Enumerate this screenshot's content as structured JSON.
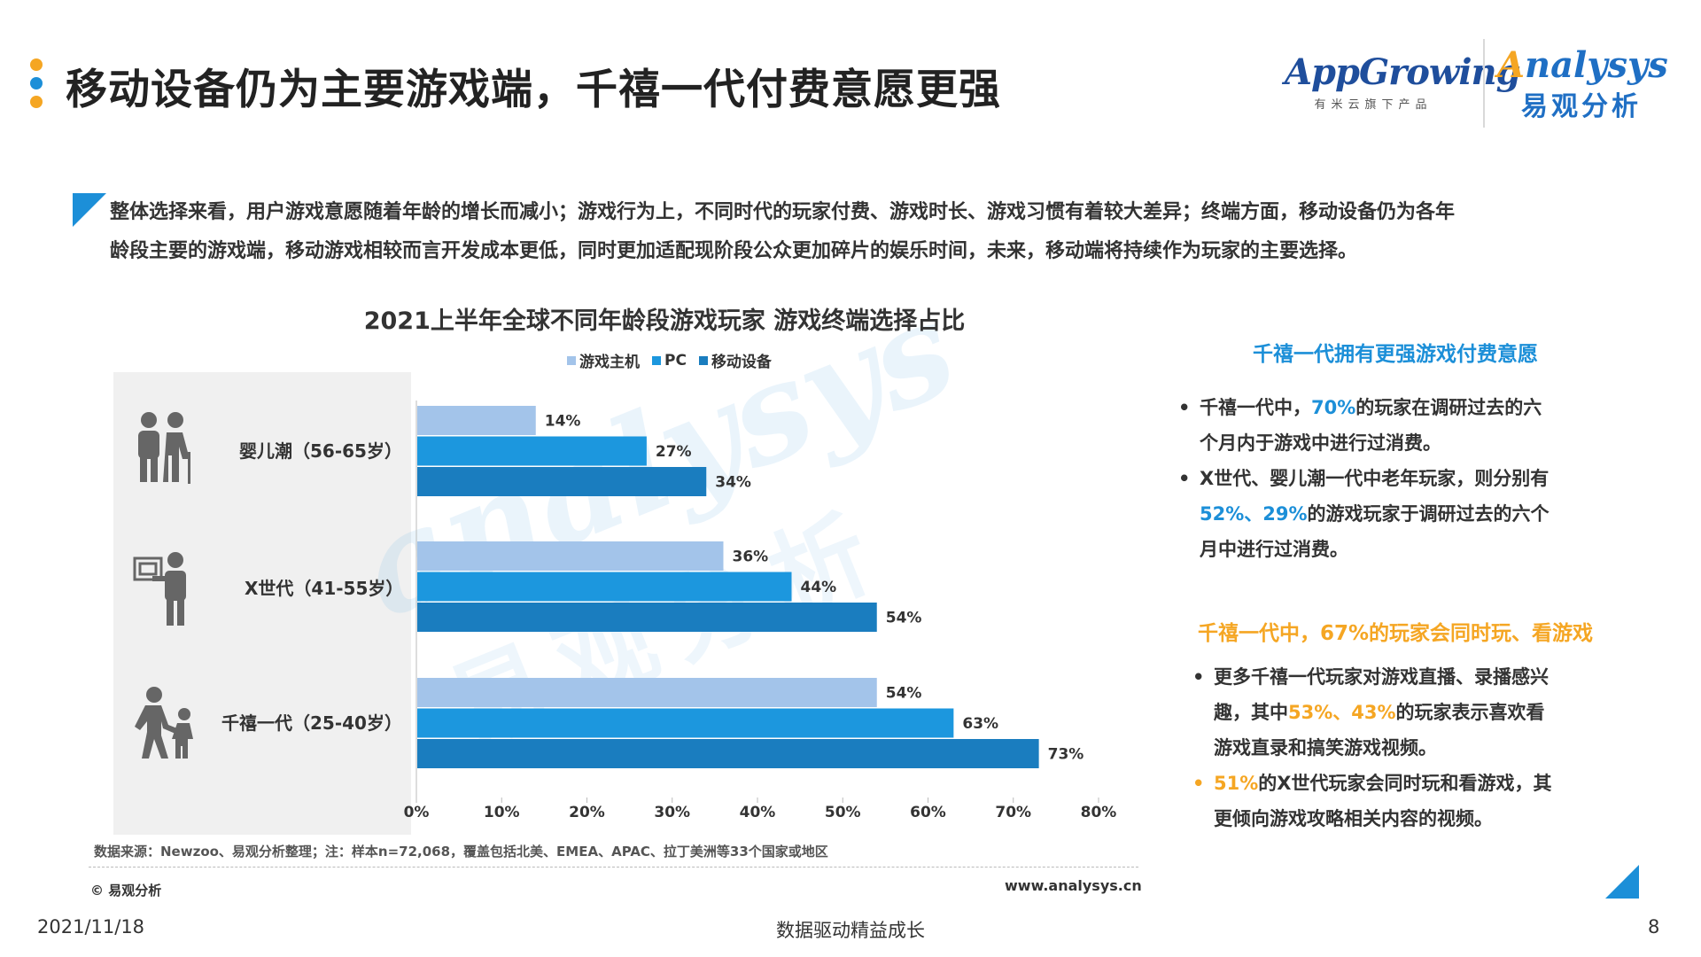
{
  "header": {
    "title": "移动设备仍为主要游戏端，千禧一代付费意愿更强",
    "dot_colors": [
      "#f5a623",
      "#1c8fd8",
      "#f5a623"
    ],
    "logo_appgrowing": "AppGrowing",
    "logo_appgrowing_sub": "有米云旗下产品",
    "logo_analysys_lead": "A",
    "logo_analysys_rest": "nalysys",
    "logo_analysys_cn": "易观分析"
  },
  "summary": {
    "line1": "整体选择来看，用户游戏意愿随着年龄的增长而减小；游戏行为上，不同时代的玩家付费、游戏时长、游戏习惯有着较大差异；终端方面，移动设备仍为各年",
    "line2": "龄段主要的游戏端，移动游戏相较而言开发成本更低，同时更加适配现阶段公众更加碎片的娱乐时间，未来，移动端将持续作为玩家的主要选择。"
  },
  "chart_data": {
    "type": "bar",
    "orientation": "horizontal",
    "title": "2021上半年全球不同年龄段游戏玩家 游戏终端选择占比",
    "categories": [
      "婴儿潮（56-65岁）",
      "X世代（41-55岁）",
      "千禧一代（25-40岁）"
    ],
    "category_icons": [
      "elderly-couple-icon",
      "office-worker-icon",
      "parent-child-icon"
    ],
    "series": [
      {
        "name": "游戏主机",
        "values": [
          14,
          36,
          54
        ],
        "color": "#a3c4ea"
      },
      {
        "name": "PC",
        "values": [
          27,
          44,
          63
        ],
        "color": "#1c97de"
      },
      {
        "name": "移动设备",
        "values": [
          34,
          54,
          73
        ],
        "color": "#1a7dbf"
      }
    ],
    "value_suffix": "%",
    "xlim": [
      0,
      80
    ],
    "xticks": [
      0,
      10,
      20,
      30,
      40,
      50,
      60,
      70,
      80
    ],
    "xtick_suffix": "%",
    "legend_position": "top",
    "grid": false
  },
  "watermark": {
    "word": "analysys",
    "cn": "易观分析"
  },
  "source": "数据来源：Newzoo、易观分析整理；注：样本n=72,068，覆盖包括北美、EMEA、APAC、拉丁美洲等33个国家或地区",
  "copyright": "© 易观分析",
  "website": "www.analysys.cn",
  "right_panel": {
    "section1": {
      "title": "千禧一代拥有更强游戏付费意愿",
      "bullet": "•",
      "item1": {
        "line1_pre": "千禧一代中，",
        "line1_hl": "70%",
        "line1_post": "的玩家在调研过去的六",
        "line2": "个月内于游戏中进行过消费。"
      },
      "item2": {
        "line1": "X世代、婴儿潮一代中老年玩家，则分别有",
        "line2_hl": "52%、29%",
        "line2_post": "的游戏玩家于调研过去的六个",
        "line3": "月中进行过消费。"
      }
    },
    "section2": {
      "title": "千禧一代中，67%的玩家会同时玩、看游戏",
      "bullet": "•",
      "item1": {
        "line1": "更多千禧一代玩家对游戏直播、录播感兴",
        "line2_pre": "趣，其中",
        "line2_hl": "53%、43%",
        "line2_post": "的玩家表示喜欢看",
        "line3": "游戏直录和搞笑游戏视频。"
      },
      "item2": {
        "line1_hl": "51%",
        "line1_post": "的X世代玩家会同时玩和看游戏，其",
        "line2": "更倾向游戏攻略相关内容的视频。"
      }
    }
  },
  "footer": {
    "date": "2021/11/18",
    "tagline": "数据驱动精益成长",
    "page": "8"
  }
}
